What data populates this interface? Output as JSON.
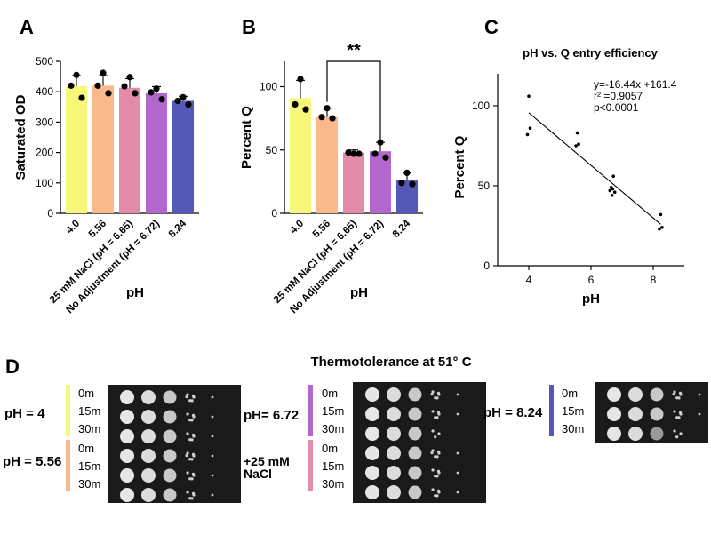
{
  "chart_data": [
    {
      "type": "bar",
      "panel_label": "A",
      "ylabel": "Saturated OD",
      "xlabel": "pH",
      "ylim": [
        0,
        500
      ],
      "yticks": [
        "0",
        "100",
        "200",
        "300",
        "400",
        "500"
      ],
      "categories": [
        "4.0",
        "5.56",
        "25 mM NaCl (pH = 6.65)",
        "No Adjustment (pH = 6.72)",
        "8.24"
      ],
      "values": [
        418,
        420,
        413,
        395,
        370
      ],
      "errors": [
        35,
        33,
        30,
        22,
        15
      ],
      "points": [
        [
          455,
          420,
          380
        ],
        [
          462,
          420,
          395
        ],
        [
          448,
          418,
          395
        ],
        [
          410,
          398,
          375
        ],
        [
          382,
          370,
          358
        ]
      ],
      "colors": [
        "#f7f77a",
        "#f9b98a",
        "#e48aaa",
        "#b267cc",
        "#5558b6"
      ]
    },
    {
      "type": "bar",
      "panel_label": "B",
      "ylabel": "Percent Q",
      "xlabel": "pH",
      "ylim": [
        0,
        120
      ],
      "yticks": [
        "0",
        "50",
        "100"
      ],
      "categories": [
        "4.0",
        "5.56",
        "25 mM NaCl (pH = 6.65)",
        "No Adjustment (pH = 6.72)",
        "8.24"
      ],
      "values": [
        91,
        76,
        48,
        49,
        26
      ],
      "errors": [
        14,
        7,
        2,
        7,
        6
      ],
      "points": [
        [
          106,
          86,
          82
        ],
        [
          83,
          76,
          75
        ],
        [
          47,
          48,
          47
        ],
        [
          56,
          47,
          44
        ],
        [
          32,
          24,
          23
        ]
      ],
      "colors": [
        "#f7f77a",
        "#f9b98a",
        "#e48aaa",
        "#b267cc",
        "#5558b6"
      ],
      "annotation": "**"
    },
    {
      "type": "scatter",
      "panel_label": "C",
      "title": "pH vs. Q entry efficiency",
      "xlabel": "pH",
      "ylabel": "Percent Q",
      "xlim": [
        3,
        9
      ],
      "ylim": [
        0,
        120
      ],
      "xticks": [
        "4",
        "6",
        "8"
      ],
      "yticks": [
        "0",
        "50",
        "100"
      ],
      "x": [
        4.0,
        4.0,
        4.0,
        5.56,
        5.56,
        5.56,
        6.65,
        6.65,
        6.65,
        6.72,
        6.72,
        6.72,
        8.24,
        8.24,
        8.24
      ],
      "y": [
        106,
        86,
        82,
        83,
        76,
        75,
        49,
        48,
        47,
        56,
        46,
        44,
        32,
        24,
        23
      ],
      "fit": {
        "slope": -16.44,
        "intercept": 161.4,
        "x_range": [
          4.0,
          8.24
        ]
      },
      "stats": [
        "y=-16.44x +161.4",
        "r² =0.9057",
        "p<0.0001"
      ]
    }
  ],
  "panel_d": {
    "label": "D",
    "title": "Thermotolerance at 51° C",
    "groups": [
      {
        "sets": [
          {
            "label": "pH = 4",
            "color": "#f7f77a",
            "times": [
              "0m",
              "15m",
              "30m"
            ]
          },
          {
            "label": "pH = 5.56",
            "color": "#f9b98a",
            "times": [
              "0m",
              "15m",
              "30m"
            ]
          }
        ]
      },
      {
        "sets": [
          {
            "label": "pH= 6.72",
            "color": "#b267cc",
            "times": [
              "0m",
              "15m",
              "30m"
            ]
          },
          {
            "label": "+25 mM NaCl",
            "color": "#e48aaa",
            "times": [
              "0m",
              "15m",
              "30m"
            ]
          }
        ]
      },
      {
        "sets": [
          {
            "label": "pH = 8.24",
            "color": "#5558b6",
            "times": [
              "0m",
              "15m",
              "30m"
            ]
          }
        ]
      }
    ]
  }
}
